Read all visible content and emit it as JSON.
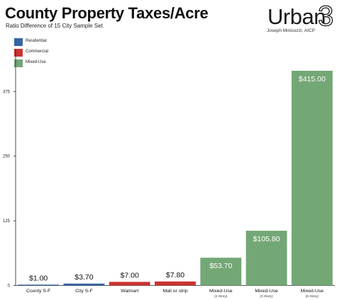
{
  "header": {
    "title": "County Property Taxes/Acre",
    "subtitle": "Ratio Difference of 15 City Sample Set"
  },
  "logo": {
    "name": "Urban",
    "superscript": "3",
    "author": "Joseph Minicozzi, AICP"
  },
  "colors": {
    "Residential": "#3465a4",
    "Commercial": "#cc3333",
    "Mixed-Use": "#74a776"
  },
  "chart_data": {
    "type": "bar",
    "title": "County Property Taxes/Acre",
    "subtitle": "Ratio Difference of 15 City Sample Set",
    "categories": [
      {
        "name": "County S-F",
        "note": ""
      },
      {
        "name": "City S-F",
        "note": ""
      },
      {
        "name": "Walmart",
        "note": ""
      },
      {
        "name": "Mall or strip",
        "note": ""
      },
      {
        "name": "Mixed-Use",
        "note": "(2 Story)"
      },
      {
        "name": "Mixed-Use",
        "note": "(3 Story)"
      },
      {
        "name": "Mixed-Use",
        "note": "(6 Story)"
      }
    ],
    "values": [
      1.0,
      3.7,
      7.0,
      7.8,
      53.7,
      105.8,
      415.0
    ],
    "value_labels": [
      "$1.00",
      "$3.70",
      "$7.00",
      "$7.80",
      "$53.70",
      "$105.80",
      "$415.00"
    ],
    "groups": [
      "Residential",
      "Residential",
      "Commercial",
      "Commercial",
      "Mixed-Use",
      "Mixed-Use",
      "Mixed-Use"
    ],
    "legend": [
      "Residential",
      "Commercial",
      "Mixed-Use"
    ],
    "legend_position": "top-left",
    "ylim": [
      0,
      415
    ],
    "yticks": [
      0,
      125,
      250,
      375
    ],
    "grid": false,
    "xlabel": "",
    "ylabel": ""
  }
}
